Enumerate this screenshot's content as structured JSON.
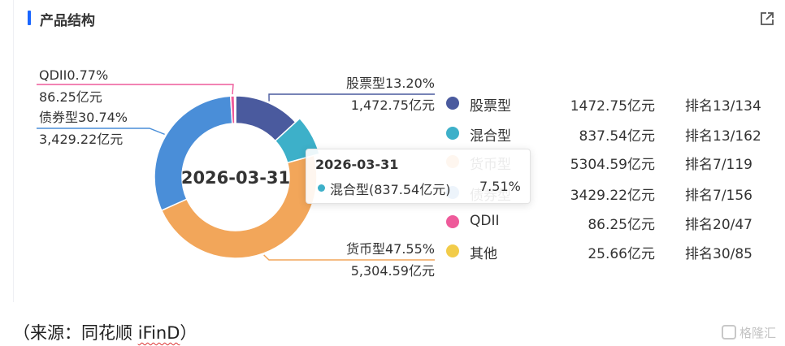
{
  "header": {
    "title": "产品结构"
  },
  "chart_data": {
    "type": "pie",
    "center_label": "2026-03-31",
    "unit": "亿元",
    "slices": [
      {
        "name": "股票型",
        "percent": 13.2,
        "label_pct": "股票型13.20%",
        "label_value": "1,472.75亿元",
        "amount": "1472.75亿元",
        "rank": "排名13/134",
        "color": "#4a5a9e"
      },
      {
        "name": "混合型",
        "percent": 7.51,
        "label_pct": "",
        "label_value": "",
        "amount": "837.54亿元",
        "rank": "排名13/162",
        "color": "#3db0c9"
      },
      {
        "name": "货币型",
        "percent": 47.55,
        "label_pct": "货币型47.55%",
        "label_value": "5,304.59亿元",
        "amount": "5304.59亿元",
        "rank": "排名7/119",
        "color": "#f2a65a"
      },
      {
        "name": "债券型",
        "percent": 30.74,
        "label_pct": "债券型30.74%",
        "label_value": "3,429.22亿元",
        "amount": "3429.22亿元",
        "rank": "排名7/156",
        "color": "#4a8ed8"
      },
      {
        "name": "QDII",
        "percent": 0.77,
        "label_pct": "QDII0.77%",
        "label_value": "86.25亿元",
        "amount": "86.25亿元",
        "rank": "排名20/47",
        "color": "#ee5a9a"
      },
      {
        "name": "其他",
        "percent": 0.23,
        "label_pct": "",
        "label_value": "",
        "amount": "25.66亿元",
        "rank": "排名30/85",
        "color": "#f2cc4a"
      }
    ],
    "highlighted": "混合型",
    "legend": "right"
  },
  "tooltip": {
    "date": "2026-03-31",
    "text": "混合型(837.54亿元)",
    "pct": "7.51%",
    "color": "#3db0c9"
  },
  "source": {
    "prefix": "（来源：同花顺 ",
    "brand": "iFinD",
    "suffix": "）"
  },
  "watermark": {
    "text": "格隆汇"
  }
}
